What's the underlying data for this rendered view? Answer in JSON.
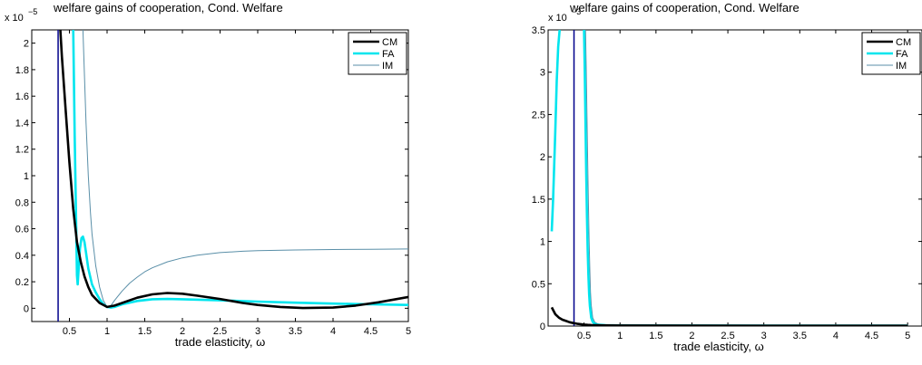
{
  "chart_data": [
    {
      "type": "line",
      "title": "welfare gains of cooperation, Cond. Welfare",
      "xlabel": "trade elasticity, ω",
      "ylabel": "",
      "scale_label": "x 10",
      "scale_exponent": "−5",
      "xlim": [
        0,
        5
      ],
      "ylim": [
        -0.1,
        2.1
      ],
      "xticks": [
        0.5,
        1,
        1.5,
        2,
        2.5,
        3,
        3.5,
        4,
        4.5,
        5
      ],
      "xtick_labels": [
        "0.5",
        "1",
        "1.5",
        "2",
        "2.5",
        "3",
        "3.5",
        "4",
        "4.5",
        "5"
      ],
      "yticks": [
        0,
        0.2,
        0.4,
        0.6,
        0.8,
        1,
        1.2,
        1.4,
        1.6,
        1.8,
        2
      ],
      "ytick_labels": [
        "0",
        "0.2",
        "0.4",
        "0.6",
        "0.8",
        "1",
        "1.2",
        "1.4",
        "1.6",
        "1.8",
        "2"
      ],
      "vline": {
        "x": 0.35,
        "color": "#00008b"
      },
      "legend_placement": "top-right",
      "grid": false,
      "series": [
        {
          "name": "CM",
          "color": "#000000",
          "width": 2.6,
          "x": [
            0.38,
            0.4,
            0.45,
            0.5,
            0.55,
            0.6,
            0.65,
            0.7,
            0.75,
            0.8,
            0.9,
            1.0,
            1.1,
            1.2,
            1.4,
            1.6,
            1.8,
            2.0,
            2.2,
            2.5,
            2.8,
            3.0,
            3.3,
            3.6,
            4.0,
            4.3,
            4.6,
            5.0
          ],
          "y": [
            2.1,
            1.9,
            1.5,
            1.1,
            0.75,
            0.5,
            0.35,
            0.24,
            0.16,
            0.1,
            0.04,
            0.01,
            0.02,
            0.04,
            0.08,
            0.105,
            0.115,
            0.11,
            0.095,
            0.07,
            0.04,
            0.025,
            0.01,
            0.002,
            0.005,
            0.02,
            0.045,
            0.085
          ]
        },
        {
          "name": "FA",
          "color": "#00e5ee",
          "width": 2.6,
          "x": [
            0.55,
            0.57,
            0.59,
            0.6,
            0.61,
            0.62,
            0.64,
            0.66,
            0.68,
            0.7,
            0.72,
            0.75,
            0.8,
            0.85,
            0.9,
            0.95,
            1.0,
            1.05,
            1.1,
            1.2,
            1.4,
            1.6,
            1.8,
            2.0,
            2.5,
            3.0,
            3.5,
            4.0,
            4.5,
            5.0
          ],
          "y": [
            2.1,
            1.3,
            0.6,
            0.25,
            0.18,
            0.28,
            0.45,
            0.53,
            0.54,
            0.5,
            0.42,
            0.3,
            0.18,
            0.12,
            0.07,
            0.03,
            0.01,
            0.005,
            0.01,
            0.03,
            0.055,
            0.068,
            0.07,
            0.068,
            0.06,
            0.05,
            0.042,
            0.035,
            0.03,
            0.025
          ]
        },
        {
          "name": "IM",
          "color": "#5a8fa8",
          "width": 1,
          "x": [
            0.68,
            0.7,
            0.72,
            0.75,
            0.78,
            0.8,
            0.85,
            0.9,
            0.95,
            1.0,
            1.05,
            1.1,
            1.2,
            1.3,
            1.4,
            1.5,
            1.6,
            1.8,
            2.0,
            2.2,
            2.5,
            2.8,
            3.0,
            3.5,
            4.0,
            4.5,
            5.0
          ],
          "y": [
            2.1,
            1.75,
            1.4,
            1.0,
            0.72,
            0.56,
            0.32,
            0.16,
            0.06,
            0.01,
            0.02,
            0.06,
            0.13,
            0.19,
            0.235,
            0.275,
            0.305,
            0.35,
            0.38,
            0.4,
            0.42,
            0.43,
            0.435,
            0.44,
            0.443,
            0.445,
            0.447
          ]
        }
      ]
    },
    {
      "type": "line",
      "title": "welfare gains of cooperation, Cond. Welfare",
      "xlabel": "trade elasticity, ω",
      "ylabel": "",
      "scale_label": "x 10",
      "scale_exponent": "−3",
      "xlim": [
        0,
        5.2
      ],
      "ylim": [
        0,
        3.5
      ],
      "xticks": [
        0.5,
        1,
        1.5,
        2,
        2.5,
        3,
        3.5,
        4,
        4.5,
        5
      ],
      "xtick_labels": [
        "0.5",
        "1",
        "1.5",
        "2",
        "2.5",
        "3",
        "3.5",
        "4",
        "4.5",
        "5"
      ],
      "yticks": [
        0,
        0.5,
        1,
        1.5,
        2,
        2.5,
        3,
        3.5
      ],
      "ytick_labels": [
        "0",
        "0.5",
        "1",
        "1.5",
        "2",
        "2.5",
        "3",
        "3.5"
      ],
      "vline": {
        "x": 0.36,
        "color": "#00008b"
      },
      "legend_placement": "top-right",
      "grid": false,
      "series": [
        {
          "name": "CM",
          "color": "#000000",
          "width": 2.6,
          "x": [
            0.05,
            0.1,
            0.15,
            0.2,
            0.25,
            0.3,
            0.35,
            0.4,
            0.45,
            0.5,
            0.55,
            0.6,
            0.8,
            1.0,
            2.0,
            3.0,
            4.0,
            5.0
          ],
          "y": [
            0.22,
            0.14,
            0.1,
            0.075,
            0.06,
            0.045,
            0.035,
            0.028,
            0.022,
            0.017,
            0.014,
            0.012,
            0.008,
            0.006,
            0.004,
            0.003,
            0.003,
            0.003
          ]
        },
        {
          "name": "FA",
          "color": "#00e5ee",
          "width": 2.6,
          "x": [
            0.05,
            0.07,
            0.1,
            0.12,
            0.14,
            0.16
          ],
          "y": [
            1.12,
            1.5,
            2.3,
            2.9,
            3.3,
            3.5
          ],
          "x2": [
            0.5,
            0.51,
            0.52,
            0.53,
            0.54,
            0.55,
            0.56,
            0.57,
            0.58,
            0.6,
            0.62,
            0.65,
            0.7,
            0.8,
            1.0,
            2.0,
            3.0,
            4.0,
            5.0
          ],
          "y2": [
            3.5,
            3.0,
            2.4,
            1.8,
            1.3,
            0.9,
            0.6,
            0.38,
            0.24,
            0.1,
            0.05,
            0.025,
            0.015,
            0.01,
            0.008,
            0.006,
            0.005,
            0.004,
            0.004
          ]
        },
        {
          "name": "IM",
          "color": "#5a8fa8",
          "width": 1,
          "x": [
            0.52,
            0.53,
            0.54,
            0.55,
            0.56,
            0.57,
            0.58,
            0.59,
            0.6,
            0.62,
            0.65,
            0.7,
            0.8,
            1.0,
            2.0,
            3.0,
            4.0,
            5.0
          ],
          "y": [
            3.5,
            3.05,
            2.5,
            1.95,
            1.45,
            1.0,
            0.65,
            0.4,
            0.25,
            0.1,
            0.045,
            0.022,
            0.015,
            0.012,
            0.012,
            0.012,
            0.012,
            0.012
          ]
        }
      ]
    }
  ]
}
